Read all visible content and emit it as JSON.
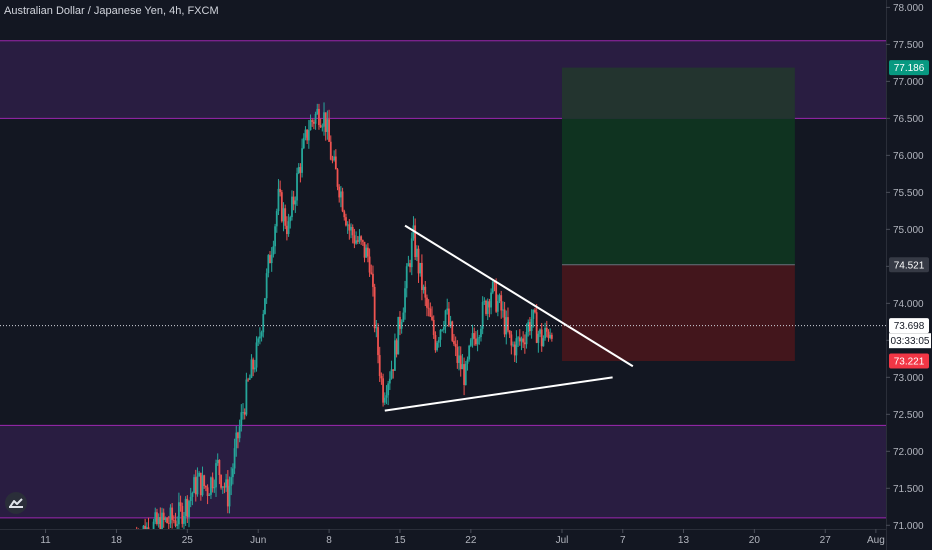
{
  "header": {
    "title": "Australian Dollar / Japanese Yen, 4h, FXCM"
  },
  "colors": {
    "background": "#131722",
    "up": "#26a69a",
    "down": "#ef5350",
    "zone_fill": "#2e1f47",
    "zone_line": "#9c27b0",
    "target_fill": "#0f3320",
    "target_top": "#23342f",
    "stop_fill": "#43161c",
    "axis_text": "#b2b5be"
  },
  "logo_icon": "tradingview-logo-icon",
  "chart_data": {
    "type": "candlestick",
    "symbol": "Australian Dollar / Japanese Yen",
    "timeframe": "4h",
    "source": "FXCM",
    "ylim": [
      70.95,
      78.1
    ],
    "y_ticks": [
      {
        "value": 71.0,
        "label": "71.000"
      },
      {
        "value": 71.5,
        "label": "71.500"
      },
      {
        "value": 72.0,
        "label": "72.000"
      },
      {
        "value": 72.5,
        "label": "72.500"
      },
      {
        "value": 73.0,
        "label": "73.000"
      },
      {
        "value": 73.5,
        "label": "73.500"
      },
      {
        "value": 74.0,
        "label": "74.000"
      },
      {
        "value": 74.5,
        "label": "74.500"
      },
      {
        "value": 75.0,
        "label": "75.000"
      },
      {
        "value": 75.5,
        "label": "75.500"
      },
      {
        "value": 76.0,
        "label": "76.000"
      },
      {
        "value": 76.5,
        "label": "76.500"
      },
      {
        "value": 77.0,
        "label": "77.000"
      },
      {
        "value": 77.5,
        "label": "77.500"
      },
      {
        "value": 78.0,
        "label": "78.000"
      }
    ],
    "x_days_range": [
      -24.5,
      63
    ],
    "x_ticks": [
      {
        "day": -20,
        "label": "11"
      },
      {
        "day": -13,
        "label": "18"
      },
      {
        "day": -6,
        "label": "25"
      },
      {
        "day": 1,
        "label": "Jun"
      },
      {
        "day": 8,
        "label": "8"
      },
      {
        "day": 15,
        "label": "15"
      },
      {
        "day": 22,
        "label": "22"
      },
      {
        "day": 31,
        "label": "Jul"
      },
      {
        "day": 37,
        "label": "7"
      },
      {
        "day": 43,
        "label": "13"
      },
      {
        "day": 50,
        "label": "20"
      },
      {
        "day": 57,
        "label": "27"
      },
      {
        "day": 62,
        "label": "Aug"
      }
    ],
    "price_path": [
      {
        "day": -11,
        "price": 70.9
      },
      {
        "day": -9,
        "price": 71.0
      },
      {
        "day": -7,
        "price": 71.1
      },
      {
        "day": -6,
        "price": 71.3
      },
      {
        "day": -5,
        "price": 71.6
      },
      {
        "day": -4,
        "price": 71.5
      },
      {
        "day": -3,
        "price": 71.8
      },
      {
        "day": -2,
        "price": 71.4
      },
      {
        "day": -1,
        "price": 72.2
      },
      {
        "day": 0,
        "price": 72.9
      },
      {
        "day": 1,
        "price": 73.4
      },
      {
        "day": 2,
        "price": 74.5
      },
      {
        "day": 3,
        "price": 75.4
      },
      {
        "day": 4,
        "price": 75.0
      },
      {
        "day": 5,
        "price": 75.8
      },
      {
        "day": 6,
        "price": 76.4
      },
      {
        "day": 7,
        "price": 76.6
      },
      {
        "day": 7.6,
        "price": 76.5
      },
      {
        "day": 8.3,
        "price": 75.9
      },
      {
        "day": 9,
        "price": 75.6
      },
      {
        "day": 10,
        "price": 75.0
      },
      {
        "day": 11,
        "price": 74.8
      },
      {
        "day": 12,
        "price": 74.6
      },
      {
        "day": 12.6,
        "price": 73.6
      },
      {
        "day": 13.3,
        "price": 72.8
      },
      {
        "day": 14.3,
        "price": 73.2
      },
      {
        "day": 15.3,
        "price": 74.0
      },
      {
        "day": 16.3,
        "price": 74.9
      },
      {
        "day": 17.5,
        "price": 74.0
      },
      {
        "day": 18.5,
        "price": 73.5
      },
      {
        "day": 19.5,
        "price": 73.9
      },
      {
        "day": 20.5,
        "price": 73.3
      },
      {
        "day": 21.5,
        "price": 73.0
      },
      {
        "day": 22,
        "price": 73.4
      },
      {
        "day": 23,
        "price": 73.8
      },
      {
        "day": 24,
        "price": 74.2
      },
      {
        "day": 25,
        "price": 73.9
      },
      {
        "day": 26,
        "price": 73.4
      },
      {
        "day": 27,
        "price": 73.5
      },
      {
        "day": 28,
        "price": 73.8
      },
      {
        "day": 29,
        "price": 73.5
      },
      {
        "day": 30,
        "price": 73.7
      }
    ],
    "horizontal_zones": [
      {
        "top": 77.55,
        "bottom": 76.5
      },
      {
        "top": 72.35,
        "bottom": 71.1
      }
    ],
    "position": {
      "start_day": 31,
      "end_day": 54,
      "target_top": 77.186,
      "target_fade_to": 76.5,
      "entry": 74.521,
      "stop": 73.221
    },
    "trendlines": [
      {
        "from": {
          "day": 15.5,
          "price": 75.05
        },
        "to": {
          "day": 38,
          "price": 73.15
        }
      },
      {
        "from": {
          "day": 13.5,
          "price": 72.55
        },
        "to": {
          "day": 36,
          "price": 73.0
        }
      }
    ],
    "current_price": 73.698,
    "price_labels": [
      {
        "value": 77.186,
        "text": "77.186",
        "bg": "#089981",
        "color": "#ffffff"
      },
      {
        "value": 74.521,
        "text": "74.521",
        "bg": "#363a45",
        "color": "#ffffff"
      },
      {
        "value": 73.698,
        "text": "73.698",
        "bg": "#ffffff",
        "color": "#131722"
      },
      {
        "value": 73.221,
        "text": "73.221",
        "bg": "#f23645",
        "color": "#ffffff"
      }
    ],
    "countdown": "03:33:05"
  }
}
